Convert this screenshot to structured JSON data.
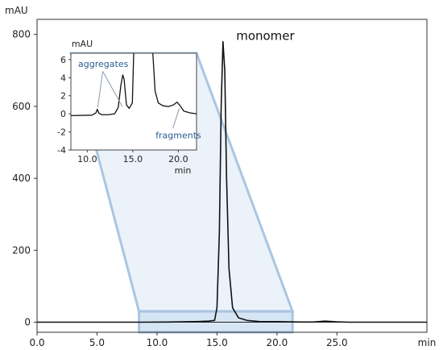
{
  "chart_data": [
    {
      "type": "line",
      "title": "",
      "xlabel": "min",
      "ylabel": "mAU",
      "xlim": [
        0,
        32.5
      ],
      "ylim": [
        -28,
        842
      ],
      "x_ticks": [
        "0.0",
        "5.0",
        "10.0",
        "15.0",
        "20.0",
        "25.0"
      ],
      "y_ticks": [
        "0",
        "200",
        "400",
        "600",
        "800"
      ],
      "grid": false,
      "series": [
        {
          "name": "",
          "points": [
            [
              0,
              0
            ],
            [
              8.5,
              0
            ],
            [
              11,
              0.5
            ],
            [
              13.5,
              2
            ],
            [
              14.3,
              3
            ],
            [
              14.8,
              5
            ],
            [
              15.0,
              40
            ],
            [
              15.2,
              250
            ],
            [
              15.35,
              600
            ],
            [
              15.5,
              780
            ],
            [
              15.65,
              700
            ],
            [
              15.8,
              400
            ],
            [
              16.0,
              150
            ],
            [
              16.3,
              40
            ],
            [
              16.8,
              12
            ],
            [
              17.5,
              5
            ],
            [
              18.5,
              2
            ],
            [
              20,
              1.5
            ],
            [
              22,
              0.5
            ],
            [
              23,
              0.5
            ],
            [
              24,
              3
            ],
            [
              25,
              1
            ],
            [
              26,
              0
            ],
            [
              32.5,
              0
            ]
          ]
        }
      ],
      "annotations": [
        {
          "text": "monomer",
          "x": 16.6,
          "y": 785
        }
      ],
      "zoom_region": {
        "x": [
          8.5,
          21.3
        ],
        "y": [
          -28,
          30
        ]
      }
    },
    {
      "type": "line",
      "title": "",
      "xlabel": "min",
      "ylabel": "mAU",
      "xlim": [
        8.2,
        22.0
      ],
      "ylim": [
        -4,
        6.7
      ],
      "x_ticks": [
        "10.0",
        "15.0",
        "20.0"
      ],
      "y_ticks": [
        "-4",
        "-2",
        "0",
        "2",
        "4",
        "6"
      ],
      "grid": false,
      "series": [
        {
          "name": "",
          "points": [
            [
              8.2,
              -0.2
            ],
            [
              10.5,
              -0.15
            ],
            [
              10.95,
              0.1
            ],
            [
              11.1,
              0.5
            ],
            [
              11.25,
              0.1
            ],
            [
              11.6,
              -0.1
            ],
            [
              12.3,
              -0.1
            ],
            [
              13.0,
              0.0
            ],
            [
              13.4,
              0.7
            ],
            [
              13.7,
              3.2
            ],
            [
              13.9,
              4.3
            ],
            [
              14.05,
              3.8
            ],
            [
              14.3,
              1.0
            ],
            [
              14.6,
              0.6
            ],
            [
              14.95,
              1.2
            ],
            [
              15.1,
              6.7
            ]
          ]
        },
        {
          "name": "",
          "points": [
            [
              17.2,
              6.7
            ],
            [
              17.45,
              2.5
            ],
            [
              17.8,
              1.2
            ],
            [
              18.3,
              0.9
            ],
            [
              18.9,
              0.8
            ],
            [
              19.5,
              1.0
            ],
            [
              19.85,
              1.3
            ],
            [
              20.2,
              0.9
            ],
            [
              20.6,
              0.3
            ],
            [
              21.3,
              0.1
            ],
            [
              22.0,
              0.0
            ]
          ]
        }
      ],
      "annotations": [
        {
          "text": "aggregates",
          "x": 9.0,
          "y": 5.2
        },
        {
          "text": "fragments",
          "x": 17.5,
          "y": -2.7
        }
      ]
    }
  ]
}
